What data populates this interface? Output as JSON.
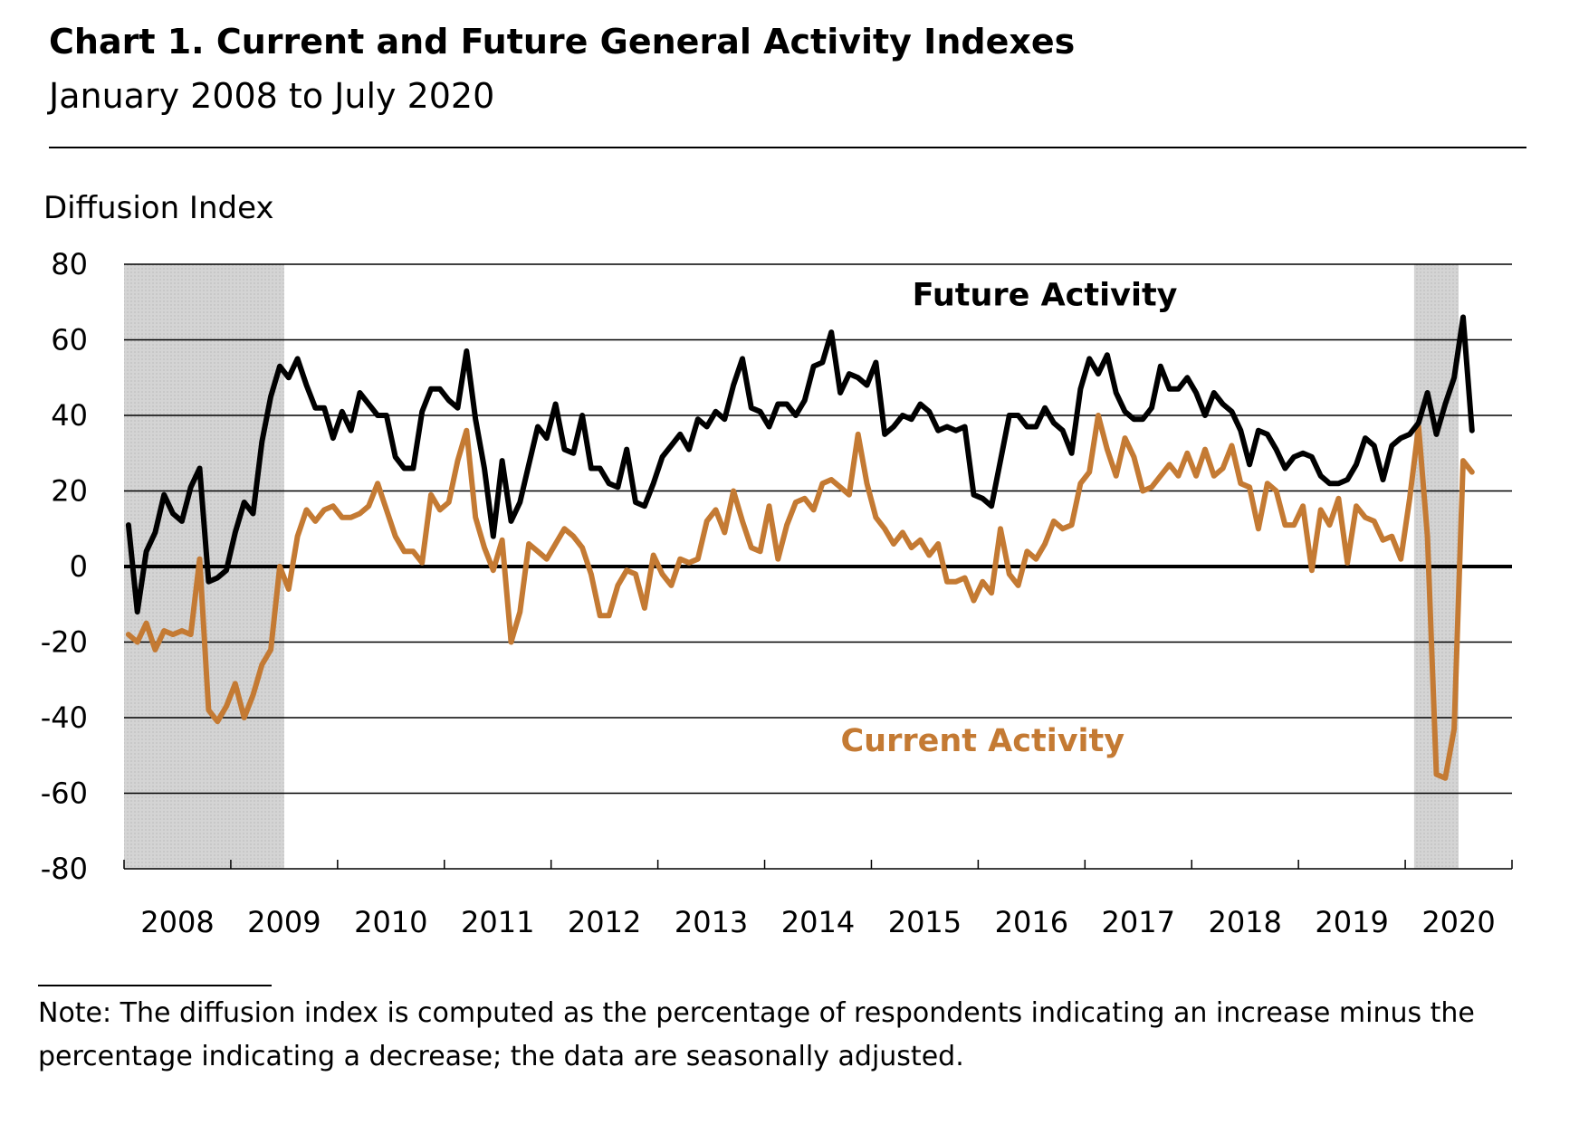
{
  "chart_data": {
    "type": "line",
    "title": "Chart 1. Current and Future General Activity Indexes",
    "subtitle": "January 2008 to July 2020",
    "ylabel": "Diffusion Index",
    "xlabel": "",
    "ylim": [
      -80,
      80
    ],
    "yticks": [
      80,
      60,
      40,
      20,
      0,
      -20,
      -40,
      -60,
      -80
    ],
    "x_categories": [
      "2008",
      "2009",
      "2010",
      "2011",
      "2012",
      "2013",
      "2014",
      "2015",
      "2016",
      "2017",
      "2018",
      "2019",
      "2020"
    ],
    "grid": true,
    "recessions": [
      {
        "start": "2008-01",
        "end": "2009-06"
      },
      {
        "start": "2020-02",
        "end": "2020-06"
      }
    ],
    "series": [
      {
        "name": "Future Activity",
        "color": "#000000",
        "start": "2008-01",
        "values": [
          11,
          -12,
          4,
          9,
          19,
          14,
          12,
          21,
          26,
          -4,
          -3,
          -1,
          9,
          17,
          14,
          33,
          45,
          53,
          50,
          55,
          48,
          42,
          42,
          34,
          41,
          36,
          46,
          43,
          40,
          40,
          29,
          26,
          26,
          41,
          47,
          47,
          44,
          42,
          57,
          39,
          26,
          8,
          28,
          12,
          17,
          27,
          37,
          34,
          43,
          31,
          30,
          40,
          26,
          26,
          22,
          21,
          31,
          17,
          16,
          22,
          29,
          32,
          35,
          31,
          39,
          37,
          41,
          39,
          48,
          55,
          42,
          41,
          37,
          43,
          43,
          40,
          44,
          53,
          54,
          62,
          46,
          51,
          50,
          48,
          54,
          35,
          37,
          40,
          39,
          43,
          41,
          36,
          37,
          36,
          37,
          19,
          18,
          16,
          28,
          40,
          40,
          37,
          37,
          42,
          38,
          36,
          30,
          47,
          55,
          51,
          56,
          46,
          41,
          39,
          39,
          42,
          53,
          47,
          47,
          50,
          46,
          40,
          46,
          43,
          41,
          36,
          27,
          36,
          35,
          31,
          26,
          29,
          30,
          29,
          24,
          22,
          22,
          23,
          27,
          34,
          32,
          23,
          32,
          34,
          35,
          38,
          46,
          35,
          43,
          50,
          66,
          36
        ]
      },
      {
        "name": "Current Activity",
        "color": "#C47A33",
        "start": "2008-01",
        "values": [
          -18,
          -20,
          -15,
          -22,
          -17,
          -18,
          -17,
          -18,
          2,
          -38,
          -41,
          -37,
          -31,
          -40,
          -34,
          -26,
          -22,
          0,
          -6,
          8,
          15,
          12,
          15,
          16,
          13,
          13,
          14,
          16,
          22,
          15,
          8,
          4,
          4,
          1,
          19,
          15,
          17,
          28,
          36,
          13,
          5,
          -1,
          7,
          -20,
          -12,
          6,
          4,
          2,
          6,
          10,
          8,
          5,
          -2,
          -13,
          -13,
          -5,
          -1,
          -2,
          -11,
          3,
          -2,
          -5,
          2,
          1,
          2,
          12,
          15,
          9,
          20,
          12,
          5,
          4,
          16,
          2,
          11,
          17,
          18,
          15,
          22,
          23,
          21,
          19,
          35,
          22,
          13,
          10,
          6,
          9,
          5,
          7,
          3,
          6,
          -4,
          -4,
          -3,
          -9,
          -4,
          -7,
          10,
          -2,
          -5,
          4,
          2,
          6,
          12,
          10,
          11,
          22,
          25,
          40,
          31,
          24,
          34,
          29,
          20,
          21,
          24,
          27,
          24,
          30,
          24,
          31,
          24,
          26,
          32,
          22,
          21,
          10,
          22,
          20,
          11,
          11,
          16,
          -1,
          15,
          11,
          18,
          1,
          16,
          13,
          12,
          7,
          8,
          2,
          18,
          37,
          8,
          -55,
          -56,
          -43,
          28,
          25
        ]
      }
    ],
    "annotations": [
      {
        "text": "Future Activity",
        "near_date": "2016-08",
        "near_value": 72
      },
      {
        "text": "Current Activity",
        "near_date": "2016-01",
        "near_value": -46
      }
    ]
  },
  "note": "Note: The diffusion index is computed as the percentage of respondents indicating an increase minus the percentage indicating a decrease; the data are seasonally adjusted."
}
